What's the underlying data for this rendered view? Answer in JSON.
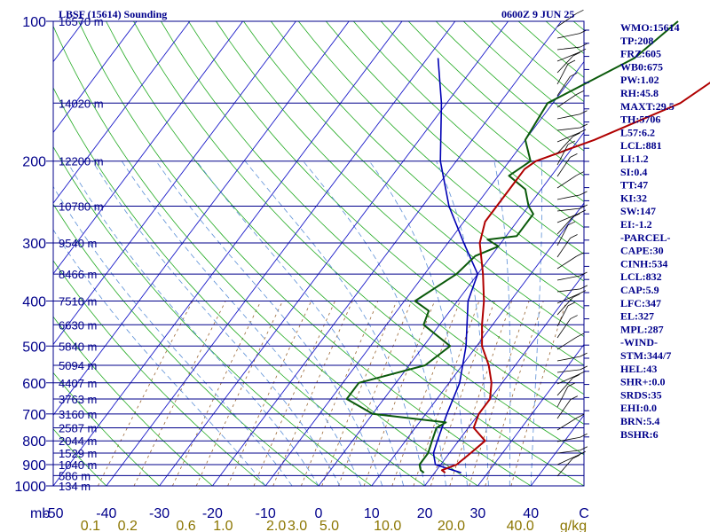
{
  "header": {
    "station": "LBSF (15614) Sounding",
    "valid_time": "0600Z  9 JUN 25"
  },
  "indices": [
    "WMO:15614",
    "TP:208",
    "FRZ:605",
    "WB0:675",
    "PW:1.02",
    "RH:45.8",
    "MAXT:29.5",
    "TH:5706",
    "L57:6.2",
    "LCL:881",
    "LI:1.2",
    "SI:0.4",
    "TT:47",
    "KI:32",
    "SW:147",
    "EI:-1.2",
    "-PARCEL-",
    "CAPE:30",
    "CINH:534",
    "LCL:832",
    "CAP:5.9",
    "LFC:347",
    "EL:327",
    "MPL:287",
    "-WIND-",
    "STM:344/7",
    "HEL:43",
    "SHR+:0.0",
    "SRDS:35",
    "EHI:0.0",
    "BRN:5.4",
    "BSHR:6"
  ],
  "colors": {
    "isobar": "#00008b",
    "isotherm": "#1a1ac8",
    "dry_adiabat": "#22aa22",
    "moist_adiabat": "#5b8fd6",
    "mixing_ratio": "#996633",
    "temperature": "#b00000",
    "dewpoint": "#0b5a0b",
    "parcel": "#0000b4",
    "label_text": "#00008b",
    "mixing_label": "#8b7500"
  },
  "chart_data": {
    "type": "skew-t",
    "title": "LBSF (15614) Sounding",
    "xlabel": "C",
    "ylabel": "mb",
    "xlim": [
      -50,
      50
    ],
    "ylim": [
      1000,
      100
    ],
    "skew_deg_per_decade": 0,
    "pressure_ticks": [
      100,
      200,
      300,
      400,
      500,
      600,
      700,
      800,
      900,
      1000
    ],
    "temperature_ticks": [
      "-50",
      "-40",
      "-30",
      "-20",
      "-10",
      "0",
      "10",
      "20",
      "30",
      "40",
      "C"
    ],
    "heights": [
      {
        "p": 100,
        "label": "16570 m"
      },
      {
        "p": 150,
        "label": "14020 m"
      },
      {
        "p": 200,
        "label": "12200 m"
      },
      {
        "p": 250,
        "label": "10780 m"
      },
      {
        "p": 300,
        "label": "9540 m"
      },
      {
        "p": 350,
        "label": "8466 m"
      },
      {
        "p": 400,
        "label": "7510 m"
      },
      {
        "p": 450,
        "label": "6630 m"
      },
      {
        "p": 500,
        "label": "5840 m"
      },
      {
        "p": 550,
        "label": "5094 m"
      },
      {
        "p": 600,
        "label": "4407 m"
      },
      {
        "p": 650,
        "label": "3763 m"
      },
      {
        "p": 700,
        "label": "3160 m"
      },
      {
        "p": 750,
        "label": "2587 m"
      },
      {
        "p": 800,
        "label": "2044 m"
      },
      {
        "p": 850,
        "label": "1529 m"
      },
      {
        "p": 900,
        "label": "1040 m"
      },
      {
        "p": 950,
        "label": "586 m"
      },
      {
        "p": 1000,
        "label": "134 m"
      }
    ],
    "mixing_ratio_labels": [
      "0.1",
      "0.2",
      "0.6",
      "1.0",
      "2.0",
      "3.0",
      "5.0",
      "10.0",
      "20.0",
      "40.0",
      "g/kg"
    ],
    "mixing_ratio_ticks_c": [
      -43,
      -36,
      -25,
      -18,
      -8,
      -4,
      2,
      13,
      25,
      38,
      48
    ],
    "temperature": [
      {
        "p": 937,
        "t": 22
      },
      {
        "p": 925,
        "t": 21
      },
      {
        "p": 900,
        "t": 23
      },
      {
        "p": 850,
        "t": 24
      },
      {
        "p": 800,
        "t": 25
      },
      {
        "p": 750,
        "t": 21
      },
      {
        "p": 700,
        "t": 20
      },
      {
        "p": 650,
        "t": 20
      },
      {
        "p": 600,
        "t": 18
      },
      {
        "p": 550,
        "t": 15
      },
      {
        "p": 500,
        "t": 11
      },
      {
        "p": 450,
        "t": 8
      },
      {
        "p": 400,
        "t": 5
      },
      {
        "p": 350,
        "t": 1
      },
      {
        "p": 300,
        "t": -4
      },
      {
        "p": 270,
        "t": -6
      },
      {
        "p": 250,
        "t": -6
      },
      {
        "p": 230,
        "t": -6
      },
      {
        "p": 208,
        "t": -6
      },
      {
        "p": 200,
        "t": -5
      },
      {
        "p": 180,
        "t": 3
      },
      {
        "p": 150,
        "t": 14
      },
      {
        "p": 120,
        "t": 20
      },
      {
        "p": 100,
        "t": 30
      }
    ],
    "dewpoint": [
      {
        "p": 937,
        "t": 18
      },
      {
        "p": 925,
        "t": 17
      },
      {
        "p": 900,
        "t": 16
      },
      {
        "p": 850,
        "t": 16
      },
      {
        "p": 800,
        "t": 15
      },
      {
        "p": 750,
        "t": 14
      },
      {
        "p": 730,
        "t": 15
      },
      {
        "p": 700,
        "t": 0
      },
      {
        "p": 650,
        "t": -7
      },
      {
        "p": 600,
        "t": -7
      },
      {
        "p": 550,
        "t": 3
      },
      {
        "p": 500,
        "t": 5
      },
      {
        "p": 450,
        "t": -3
      },
      {
        "p": 420,
        "t": -4
      },
      {
        "p": 400,
        "t": -8
      },
      {
        "p": 350,
        "t": -4
      },
      {
        "p": 320,
        "t": -3
      },
      {
        "p": 305,
        "t": 0
      },
      {
        "p": 295,
        "t": -3
      },
      {
        "p": 290,
        "t": 2
      },
      {
        "p": 280,
        "t": 2
      },
      {
        "p": 260,
        "t": 2
      },
      {
        "p": 250,
        "t": 0
      },
      {
        "p": 230,
        "t": -3
      },
      {
        "p": 215,
        "t": -8
      },
      {
        "p": 200,
        "t": -6
      },
      {
        "p": 180,
        "t": -10
      },
      {
        "p": 150,
        "t": -11
      },
      {
        "p": 120,
        "t": -1
      },
      {
        "p": 100,
        "t": 2
      }
    ],
    "parcel": [
      {
        "p": 937,
        "t": 25
      },
      {
        "p": 900,
        "t": 19
      },
      {
        "p": 850,
        "t": 17
      },
      {
        "p": 800,
        "t": 16
      },
      {
        "p": 700,
        "t": 14
      },
      {
        "p": 600,
        "t": 12
      },
      {
        "p": 500,
        "t": 8
      },
      {
        "p": 400,
        "t": 2
      },
      {
        "p": 350,
        "t": 0
      },
      {
        "p": 300,
        "t": -7
      },
      {
        "p": 250,
        "t": -15
      },
      {
        "p": 200,
        "t": -23
      },
      {
        "p": 150,
        "t": -31
      },
      {
        "p": 120,
        "t": -38
      }
    ],
    "grid": true,
    "legend": "right"
  }
}
